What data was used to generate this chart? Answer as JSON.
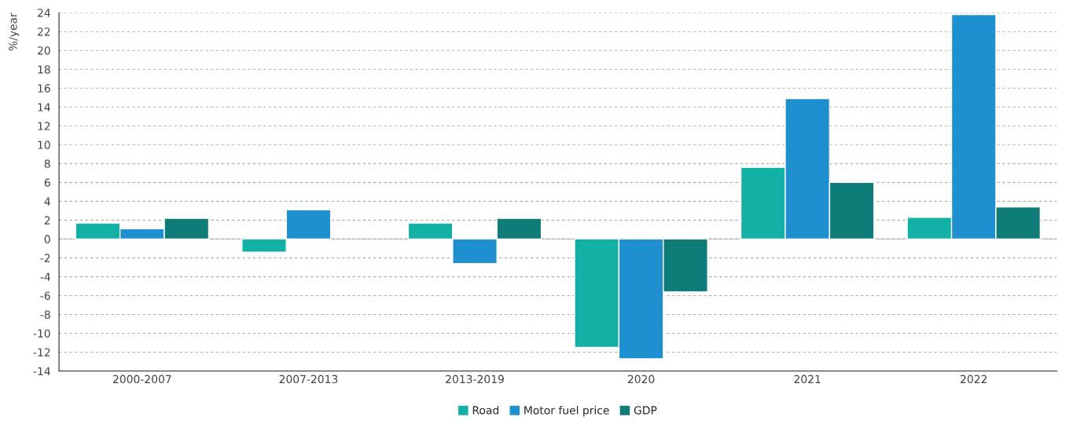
{
  "chart_data": {
    "type": "bar",
    "ylabel": "%/year",
    "categories": [
      "2000-2007",
      "2007-2013",
      "2013-2019",
      "2020",
      "2021",
      "2022"
    ],
    "series": [
      {
        "name": "Road",
        "color": "#13b0a5",
        "values": [
          1.7,
          -1.4,
          1.7,
          -11.5,
          7.6,
          2.3
        ]
      },
      {
        "name": "Motor fuel price",
        "color": "#1e90d0",
        "values": [
          1.1,
          3.1,
          -2.6,
          -12.7,
          14.9,
          23.8
        ]
      },
      {
        "name": "GDP",
        "color": "#0e7d78",
        "values": [
          2.2,
          null,
          2.2,
          -5.6,
          6.0,
          3.4
        ]
      }
    ],
    "ylim": [
      -14,
      24
    ],
    "yticks": [
      -14,
      -12,
      -10,
      -8,
      -6,
      -4,
      -2,
      0,
      2,
      4,
      6,
      8,
      10,
      12,
      14,
      16,
      18,
      20,
      22,
      24
    ],
    "grid": "y",
    "legend": "bottom"
  }
}
